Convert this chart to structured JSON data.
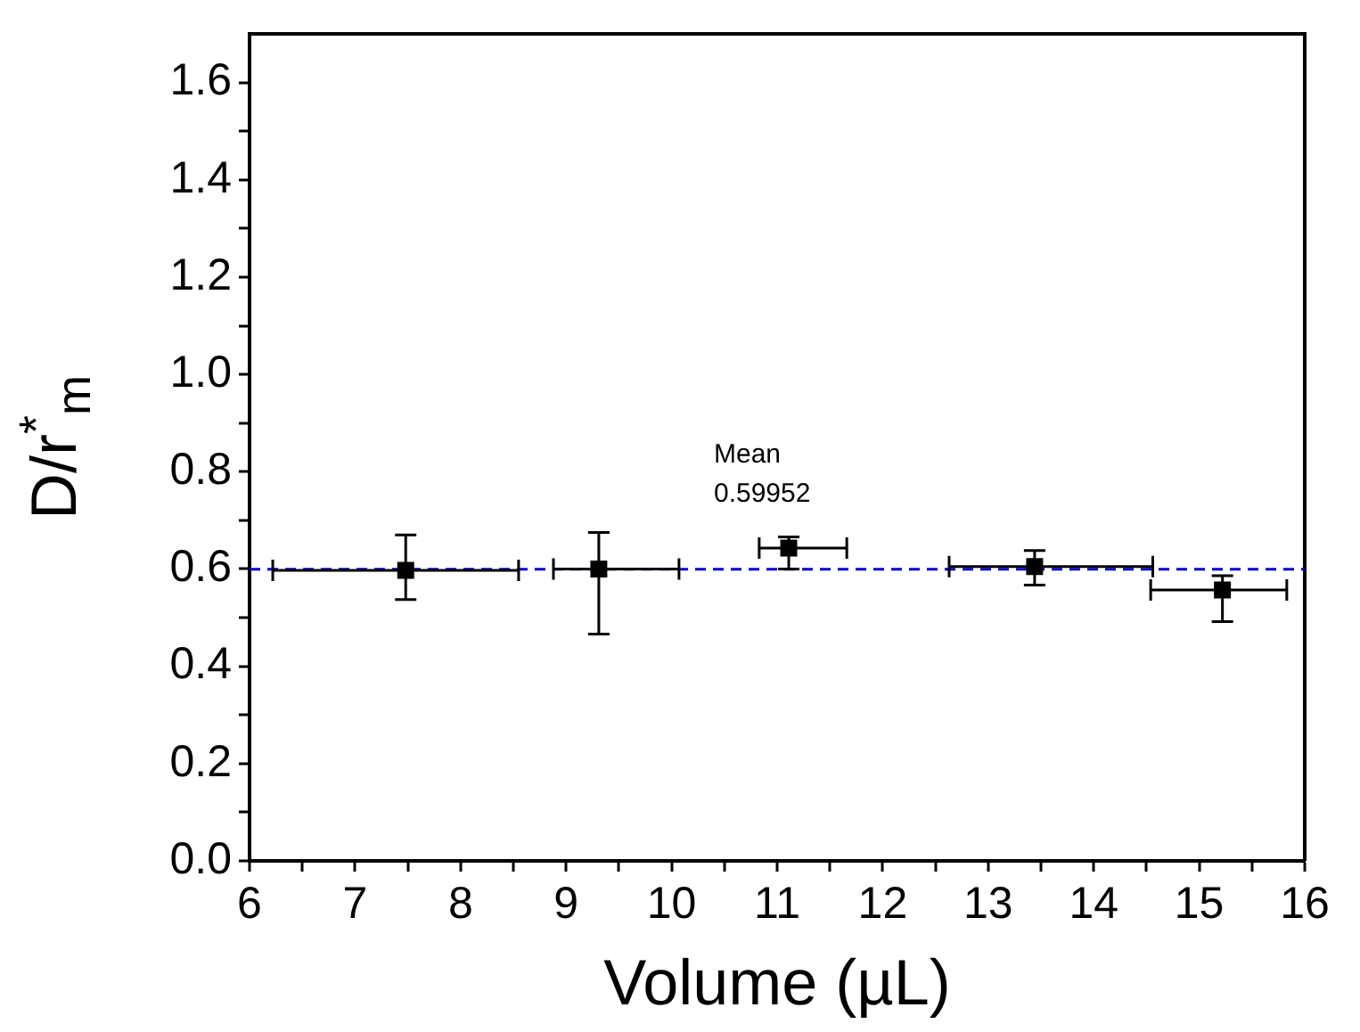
{
  "chart_data": {
    "type": "scatter",
    "xlabel": "Volume (µL)",
    "ylabel": "D/r$^{*}$$_{m}$",
    "x": [
      7.48,
      9.31,
      11.11,
      13.44,
      15.22
    ],
    "series": [
      {
        "color": "#000000",
        "values": [
          0.597,
          0.6,
          0.643,
          0.605,
          0.557
        ],
        "errors": [
          [
            0.537,
            0.67
          ],
          [
            0.466,
            0.675
          ],
          [
            0.6,
            0.666
          ],
          [
            0.567,
            0.638
          ],
          [
            0.492,
            0.586
          ]
        ],
        "xerrors": [
          [
            6.22,
            8.55
          ],
          [
            8.88,
            10.07
          ],
          [
            10.83,
            11.66
          ],
          [
            12.63,
            14.56
          ],
          [
            14.54,
            15.83
          ]
        ]
      }
    ],
    "marker": "square",
    "xlim": [
      6,
      16
    ],
    "xticks": [
      6,
      {
        "value": 6.5,
        "label": null
      },
      7,
      {
        "value": 7.5,
        "label": null
      },
      8,
      {
        "value": 8.5,
        "label": null
      },
      9,
      {
        "value": 9.5,
        "label": null
      },
      10,
      {
        "value": 10.5,
        "label": null
      },
      11,
      {
        "value": 11.5,
        "label": null
      },
      12,
      {
        "value": 12.5,
        "label": null
      },
      13,
      {
        "value": 13.5,
        "label": null
      },
      14,
      {
        "value": 14.5,
        "label": null
      },
      15,
      {
        "value": 15.5,
        "label": null
      },
      16
    ],
    "ylim": [
      0,
      1.7
    ],
    "yticks": [
      {
        "value": 0,
        "label": "0.0"
      },
      {
        "value": 0.1,
        "label": null
      },
      {
        "value": 0.2,
        "label": "0.2"
      },
      {
        "value": 0.3,
        "label": null
      },
      {
        "value": 0.4,
        "label": "0.4"
      },
      {
        "value": 0.5,
        "label": null
      },
      {
        "value": 0.6,
        "label": "0.6"
      },
      {
        "value": 0.7,
        "label": null
      },
      {
        "value": 0.8,
        "label": "0.8"
      },
      {
        "value": 0.9,
        "label": null
      },
      {
        "value": 1.0,
        "label": "1.0"
      },
      {
        "value": 1.1,
        "label": null
      },
      {
        "value": 1.2,
        "label": "1.2"
      },
      {
        "value": 1.3,
        "label": null
      },
      {
        "value": 1.4,
        "label": "1.4"
      },
      {
        "value": 1.5,
        "label": null
      },
      {
        "value": 1.6,
        "label": "1.6"
      }
    ],
    "ref_lines": [
      {
        "axis": "y",
        "value": 0.59952,
        "label": "Mean\n0.59952",
        "color": "#0000cc",
        "line_style": "dashed"
      }
    ],
    "grid": false,
    "legend": false
  }
}
